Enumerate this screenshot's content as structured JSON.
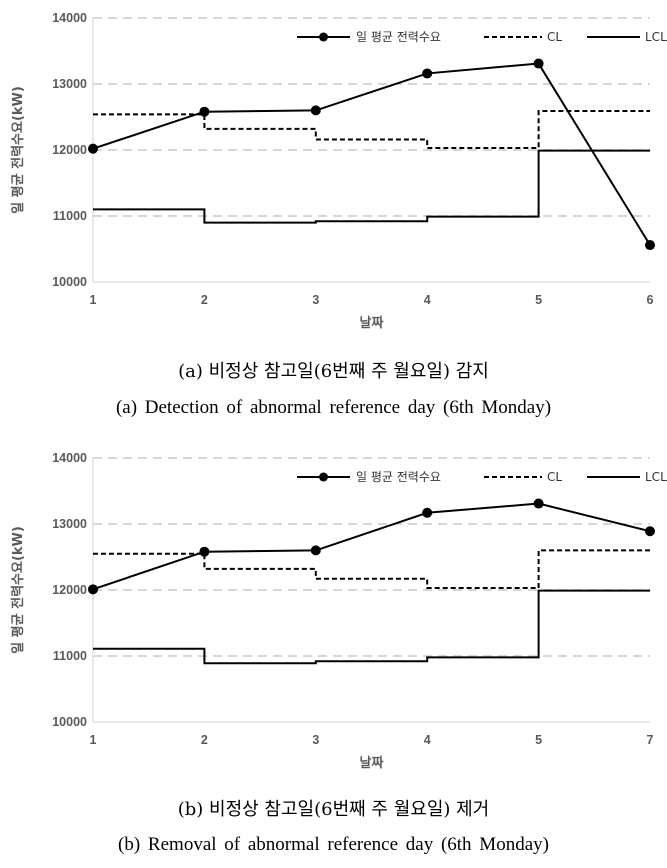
{
  "chart_data": [
    {
      "type": "line",
      "ylabel": "일 평균 전력수요(kW)",
      "xlabel": "날짜",
      "categories": [
        "1",
        "2",
        "3",
        "4",
        "5",
        "6"
      ],
      "ylim": [
        10000,
        14000
      ],
      "yticks": [
        "10000",
        "11000",
        "12000",
        "13000",
        "14000"
      ],
      "grid": true,
      "legend_position": "top-right",
      "series": [
        {
          "name": "일 평균 전력수요",
          "style": "solid-markers",
          "values": [
            12020,
            12580,
            12600,
            13160,
            13310,
            10560
          ]
        },
        {
          "name": "CL",
          "style": "dashed-step",
          "values": [
            12540,
            12320,
            12160,
            12030,
            12590,
            12590
          ]
        },
        {
          "name": "LCL",
          "style": "solid-step",
          "values": [
            11100,
            10900,
            10920,
            10990,
            11990,
            11990
          ]
        }
      ],
      "caption_ko": "(a) 비정상 참고일(6번째 주 월요일) 감지",
      "caption_en": "(a) Detection of abnormal reference day (6th Monday)"
    },
    {
      "type": "line",
      "ylabel": "일 평균 전력수요(kW)",
      "xlabel": "날짜",
      "categories": [
        "1",
        "2",
        "3",
        "4",
        "5",
        "7"
      ],
      "ylim": [
        10000,
        14000
      ],
      "yticks": [
        "10000",
        "11000",
        "12000",
        "13000",
        "14000"
      ],
      "grid": true,
      "legend_position": "top-right",
      "series": [
        {
          "name": "일 평균 전력수요",
          "style": "solid-markers",
          "values": [
            12010,
            12580,
            12600,
            13170,
            13310,
            12890
          ]
        },
        {
          "name": "CL",
          "style": "dashed-step",
          "values": [
            12550,
            12320,
            12170,
            12030,
            12600,
            12600
          ]
        },
        {
          "name": "LCL",
          "style": "solid-step",
          "values": [
            11110,
            10890,
            10920,
            10980,
            11990,
            11990
          ]
        }
      ],
      "caption_ko": "(b) 비정상 참고일(6번째 주 월요일) 제거",
      "caption_en": "(b) Removal of abnormal reference day (6th Monday)"
    }
  ]
}
